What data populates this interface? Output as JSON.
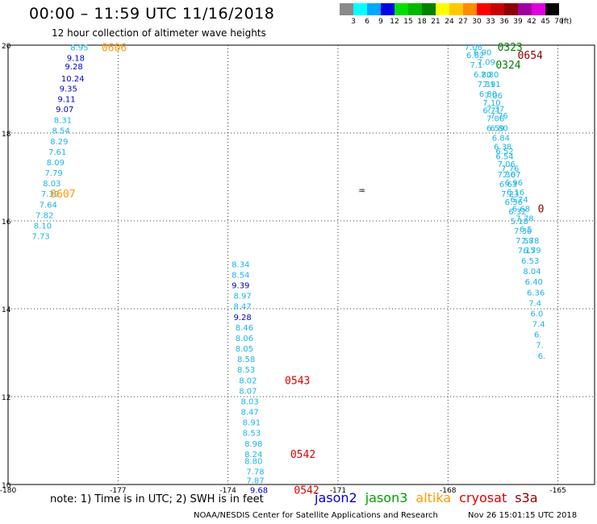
{
  "title": "00:00 – 11:59 UTC 11/16/2018",
  "subtitle": "12 hour collection of altimeter wave heights",
  "colorbar": {
    "unit": "(ft)",
    "levels": [
      {
        "label": "3",
        "color": "#8a8a8a"
      },
      {
        "label": "6",
        "color": "#00ffff"
      },
      {
        "label": "9",
        "color": "#00a8ff"
      },
      {
        "label": "12",
        "color": "#0000e6"
      },
      {
        "label": "15",
        "color": "#00e000"
      },
      {
        "label": "18",
        "color": "#00b800"
      },
      {
        "label": "21",
        "color": "#008000"
      },
      {
        "label": "24",
        "color": "#ffff00"
      },
      {
        "label": "27",
        "color": "#ffc800"
      },
      {
        "label": "30",
        "color": "#ff8c00"
      },
      {
        "label": "33",
        "color": "#ff0000"
      },
      {
        "label": "36",
        "color": "#c80000"
      },
      {
        "label": "39",
        "color": "#8b0000"
      },
      {
        "label": "42",
        "color": "#a000a0"
      },
      {
        "label": "45",
        "color": "#e000e0"
      },
      {
        "label": "70",
        "color": "#000000"
      }
    ]
  },
  "footnote": "note:  1) Time is in UTC;  2) SWH is in feet",
  "legend": [
    {
      "name": "jason2",
      "color": "#0000d0"
    },
    {
      "name": "jason3",
      "color": "#00a000"
    },
    {
      "name": "altika",
      "color": "#ff9900"
    },
    {
      "name": "cryosat",
      "color": "#e00000"
    },
    {
      "name": "s3a",
      "color": "#8b0000"
    }
  ],
  "credit": "NOAA/NESDIS Center for Satellite Applications and Research",
  "stamp": "Nov 26 15:01:15 UTC 2018",
  "chart_data": {
    "type": "scatter",
    "xlim": [
      -180,
      -164
    ],
    "ylim": [
      10,
      20
    ],
    "x_ticks": [
      "-180",
      "-177",
      "-174",
      "-171",
      "-168",
      "-165"
    ],
    "y_ticks": [
      "10",
      "12",
      "14",
      "16",
      "18",
      "20"
    ],
    "grid": true,
    "colors": {
      "light": "#1ab4e8",
      "dark": "#0000cc"
    },
    "points": [
      {
        "lon": -178.3,
        "lat": 19.95,
        "v": "8.95",
        "c": "light"
      },
      {
        "lon": -178.4,
        "lat": 19.72,
        "v": "9.18",
        "c": "dark"
      },
      {
        "lon": -178.45,
        "lat": 19.52,
        "v": "9.28",
        "c": "dark"
      },
      {
        "lon": -178.55,
        "lat": 19.25,
        "v": "10.24",
        "c": "dark"
      },
      {
        "lon": -178.6,
        "lat": 19.02,
        "v": "9.35",
        "c": "dark"
      },
      {
        "lon": -178.65,
        "lat": 18.78,
        "v": "9.11",
        "c": "dark"
      },
      {
        "lon": -178.7,
        "lat": 18.55,
        "v": "9.07",
        "c": "dark"
      },
      {
        "lon": -178.75,
        "lat": 18.3,
        "v": "8.31",
        "c": "light"
      },
      {
        "lon": -178.8,
        "lat": 18.06,
        "v": "8.54",
        "c": "light"
      },
      {
        "lon": -178.85,
        "lat": 17.82,
        "v": "8.29",
        "c": "light"
      },
      {
        "lon": -178.9,
        "lat": 17.58,
        "v": "7.61",
        "c": "light"
      },
      {
        "lon": -178.95,
        "lat": 17.34,
        "v": "8.09",
        "c": "light"
      },
      {
        "lon": -179.0,
        "lat": 17.1,
        "v": "7.79",
        "c": "light"
      },
      {
        "lon": -179.05,
        "lat": 16.86,
        "v": "8.03",
        "c": "light"
      },
      {
        "lon": -179.1,
        "lat": 16.62,
        "v": "7.39",
        "c": "light"
      },
      {
        "lon": -179.15,
        "lat": 16.38,
        "v": "7.64",
        "c": "light"
      },
      {
        "lon": -179.25,
        "lat": 16.14,
        "v": "7.82",
        "c": "light"
      },
      {
        "lon": -179.3,
        "lat": 15.9,
        "v": "8.10",
        "c": "light"
      },
      {
        "lon": -179.35,
        "lat": 15.66,
        "v": "7.73",
        "c": "light"
      },
      {
        "lon": -173.9,
        "lat": 15.02,
        "v": "8.34",
        "c": "light"
      },
      {
        "lon": -173.9,
        "lat": 14.78,
        "v": "8.54",
        "c": "light"
      },
      {
        "lon": -173.9,
        "lat": 14.54,
        "v": "9.39",
        "c": "dark"
      },
      {
        "lon": -173.85,
        "lat": 14.3,
        "v": "8.97",
        "c": "light"
      },
      {
        "lon": -173.85,
        "lat": 14.06,
        "v": "8.47",
        "c": "light"
      },
      {
        "lon": -173.85,
        "lat": 13.82,
        "v": "9.28",
        "c": "dark"
      },
      {
        "lon": -173.8,
        "lat": 13.58,
        "v": "8.46",
        "c": "light"
      },
      {
        "lon": -173.8,
        "lat": 13.34,
        "v": "8.06",
        "c": "light"
      },
      {
        "lon": -173.8,
        "lat": 13.1,
        "v": "8.05",
        "c": "light"
      },
      {
        "lon": -173.75,
        "lat": 12.86,
        "v": "8.58",
        "c": "light"
      },
      {
        "lon": -173.75,
        "lat": 12.62,
        "v": "8.53",
        "c": "light"
      },
      {
        "lon": -173.7,
        "lat": 12.38,
        "v": "8.02",
        "c": "light"
      },
      {
        "lon": -173.7,
        "lat": 12.14,
        "v": "8.07",
        "c": "light"
      },
      {
        "lon": -173.65,
        "lat": 11.9,
        "v": "8.03",
        "c": "light"
      },
      {
        "lon": -173.65,
        "lat": 11.66,
        "v": "8.47",
        "c": "light"
      },
      {
        "lon": -173.6,
        "lat": 11.42,
        "v": "8.91",
        "c": "light"
      },
      {
        "lon": -173.6,
        "lat": 11.18,
        "v": "8.53",
        "c": "light"
      },
      {
        "lon": -173.55,
        "lat": 10.94,
        "v": "8.98",
        "c": "light"
      },
      {
        "lon": -173.55,
        "lat": 10.7,
        "v": "8.24",
        "c": "light"
      },
      {
        "lon": -173.55,
        "lat": 10.54,
        "v": "8.80",
        "c": "light"
      },
      {
        "lon": -173.5,
        "lat": 10.3,
        "v": "7.78",
        "c": "light"
      },
      {
        "lon": -173.5,
        "lat": 10.1,
        "v": "7.87",
        "c": "light"
      },
      {
        "lon": -173.4,
        "lat": 9.88,
        "v": "9.68",
        "c": "dark"
      },
      {
        "lon": -167.55,
        "lat": 19.96,
        "v": "7.06",
        "c": "light"
      },
      {
        "lon": -167.5,
        "lat": 19.78,
        "v": "6.62",
        "c": "light"
      },
      {
        "lon": -167.3,
        "lat": 19.84,
        "v": "6.90",
        "c": "light"
      },
      {
        "lon": -167.4,
        "lat": 19.56,
        "v": "7.1",
        "c": "light"
      },
      {
        "lon": -167.2,
        "lat": 19.62,
        "v": "7.09",
        "c": "light"
      },
      {
        "lon": -167.3,
        "lat": 19.34,
        "v": "6.80",
        "c": "light"
      },
      {
        "lon": -167.1,
        "lat": 19.34,
        "v": "7.80",
        "c": "light"
      },
      {
        "lon": -167.2,
        "lat": 19.12,
        "v": "7.31",
        "c": "light"
      },
      {
        "lon": -167.05,
        "lat": 19.12,
        "v": "7.91",
        "c": "light"
      },
      {
        "lon": -167.15,
        "lat": 18.9,
        "v": "6.80",
        "c": "light"
      },
      {
        "lon": -167.0,
        "lat": 18.86,
        "v": "7.06",
        "c": "light"
      },
      {
        "lon": -167.05,
        "lat": 18.7,
        "v": "7.10",
        "c": "light"
      },
      {
        "lon": -167.05,
        "lat": 18.52,
        "v": "6.71",
        "c": "light"
      },
      {
        "lon": -166.95,
        "lat": 18.56,
        "v": "7.37",
        "c": "light"
      },
      {
        "lon": -166.95,
        "lat": 18.34,
        "v": "7.06",
        "c": "light"
      },
      {
        "lon": -166.85,
        "lat": 18.4,
        "v": "7.76",
        "c": "light"
      },
      {
        "lon": -166.95,
        "lat": 18.12,
        "v": "6.59",
        "c": "light"
      },
      {
        "lon": -166.85,
        "lat": 18.12,
        "v": "6.80",
        "c": "light"
      },
      {
        "lon": -166.8,
        "lat": 17.9,
        "v": "6.84",
        "c": "light"
      },
      {
        "lon": -166.75,
        "lat": 17.7,
        "v": "6.38",
        "c": "light"
      },
      {
        "lon": -166.7,
        "lat": 17.6,
        "v": "6.52",
        "c": "light"
      },
      {
        "lon": -166.7,
        "lat": 17.48,
        "v": "6.54",
        "c": "light"
      },
      {
        "lon": -166.65,
        "lat": 17.3,
        "v": "7.06",
        "c": "light"
      },
      {
        "lon": -166.55,
        "lat": 17.2,
        "v": "7.76",
        "c": "light"
      },
      {
        "lon": -166.65,
        "lat": 17.06,
        "v": "7.36",
        "c": "light"
      },
      {
        "lon": -166.5,
        "lat": 17.06,
        "v": "7.07",
        "c": "light"
      },
      {
        "lon": -166.6,
        "lat": 16.84,
        "v": "6.63",
        "c": "light"
      },
      {
        "lon": -166.45,
        "lat": 16.88,
        "v": "6.96",
        "c": "light"
      },
      {
        "lon": -166.55,
        "lat": 16.62,
        "v": "7.23",
        "c": "light"
      },
      {
        "lon": -166.4,
        "lat": 16.66,
        "v": "6.16",
        "c": "light"
      },
      {
        "lon": -166.45,
        "lat": 16.44,
        "v": "6.36",
        "c": "light"
      },
      {
        "lon": -166.3,
        "lat": 16.5,
        "v": "6.74",
        "c": "light"
      },
      {
        "lon": -166.35,
        "lat": 16.22,
        "v": "6.32",
        "c": "light"
      },
      {
        "lon": -166.25,
        "lat": 16.28,
        "v": "6.68",
        "c": "light"
      },
      {
        "lon": -166.3,
        "lat": 16.0,
        "v": "5.18",
        "c": "light"
      },
      {
        "lon": -166.15,
        "lat": 16.06,
        "v": "7.78",
        "c": "light"
      },
      {
        "lon": -166.2,
        "lat": 15.78,
        "v": "7.36",
        "c": "light"
      },
      {
        "lon": -166.05,
        "lat": 15.82,
        "v": "6.5",
        "c": "light"
      },
      {
        "lon": -166.15,
        "lat": 15.56,
        "v": "7.58",
        "c": "light"
      },
      {
        "lon": -166.0,
        "lat": 15.56,
        "v": "7.78",
        "c": "light"
      },
      {
        "lon": -166.1,
        "lat": 15.34,
        "v": "7.15",
        "c": "light"
      },
      {
        "lon": -165.95,
        "lat": 15.34,
        "v": "6.79",
        "c": "light"
      },
      {
        "lon": -166.0,
        "lat": 15.1,
        "v": "6.53",
        "c": "light"
      },
      {
        "lon": -165.95,
        "lat": 14.86,
        "v": "8.04",
        "c": "light"
      },
      {
        "lon": -165.9,
        "lat": 14.62,
        "v": "6.40",
        "c": "light"
      },
      {
        "lon": -165.85,
        "lat": 14.38,
        "v": "6.36",
        "c": "light"
      },
      {
        "lon": -165.8,
        "lat": 14.14,
        "v": "7.4",
        "c": "light"
      },
      {
        "lon": -165.75,
        "lat": 13.9,
        "v": "6.0",
        "c": "light"
      },
      {
        "lon": -165.7,
        "lat": 13.66,
        "v": "7.4",
        "c": "light"
      },
      {
        "lon": -165.65,
        "lat": 13.42,
        "v": "6.",
        "c": "light"
      },
      {
        "lon": -165.6,
        "lat": 13.18,
        "v": "7.",
        "c": "light"
      },
      {
        "lon": -165.55,
        "lat": 12.94,
        "v": "6.",
        "c": "light"
      }
    ],
    "times": [
      {
        "lon": -177.45,
        "lat": 19.95,
        "t": "0606",
        "color": "#ff9900"
      },
      {
        "lon": -178.85,
        "lat": 16.62,
        "t": "0607",
        "color": "#ff9900"
      },
      {
        "lon": -172.45,
        "lat": 12.38,
        "t": "0543",
        "color": "#e00000"
      },
      {
        "lon": -172.3,
        "lat": 10.7,
        "t": "0542",
        "color": "#e00000"
      },
      {
        "lon": -172.2,
        "lat": 9.88,
        "t": "0542",
        "color": "#e00000"
      },
      {
        "lon": -166.65,
        "lat": 19.96,
        "t": "0323",
        "color": "#008000"
      },
      {
        "lon": -166.1,
        "lat": 19.78,
        "t": "0654",
        "color": "#8b0000"
      },
      {
        "lon": -166.7,
        "lat": 19.56,
        "t": "0324",
        "color": "#008000"
      },
      {
        "lon": -165.55,
        "lat": 16.28,
        "t": "0",
        "color": "#8b0000"
      }
    ],
    "marker": {
      "lon": -170.45,
      "lat": 16.7,
      "label": "♒"
    }
  }
}
